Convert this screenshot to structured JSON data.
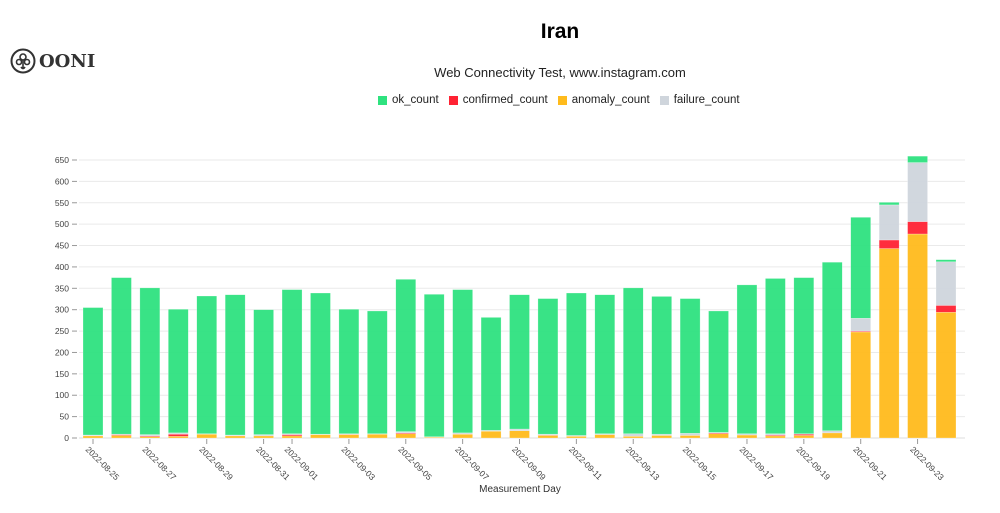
{
  "logo": {
    "text": "OONI",
    "icon": "ooni-octopus-logo"
  },
  "chart_data": {
    "type": "bar",
    "stacked": true,
    "title": "Iran",
    "subtitle": "Web Connectivity Test, www.instagram.com",
    "xlabel": "Measurement Day",
    "ylabel": "",
    "ylim": [
      0,
      660
    ],
    "yticks": [
      0,
      50,
      100,
      150,
      200,
      250,
      300,
      350,
      400,
      450,
      500,
      550,
      600,
      650
    ],
    "grid": true,
    "legend_position": "top-center",
    "categories": [
      "2022-08-25",
      "2022-08-26",
      "2022-08-27",
      "2022-08-28",
      "2022-08-29",
      "2022-08-30",
      "2022-08-31",
      "2022-09-01",
      "2022-09-02",
      "2022-09-03",
      "2022-09-04",
      "2022-09-05",
      "2022-09-06",
      "2022-09-07",
      "2022-09-08",
      "2022-09-09",
      "2022-09-10",
      "2022-09-11",
      "2022-09-12",
      "2022-09-13",
      "2022-09-14",
      "2022-09-15",
      "2022-09-16",
      "2022-09-17",
      "2022-09-18",
      "2022-09-19",
      "2022-09-20",
      "2022-09-21",
      "2022-09-22",
      "2022-09-23",
      "2022-09-24"
    ],
    "xtick_labels": [
      "2022-08-25",
      "2022-08-27",
      "2022-08-29",
      "2022-08-31",
      "2022-09-01",
      "2022-09-03",
      "2022-09-05",
      "2022-09-07",
      "2022-09-09",
      "2022-09-11",
      "2022-09-13",
      "2022-09-15",
      "2022-09-17",
      "2022-09-19",
      "2022-09-21",
      "2022-09-23"
    ],
    "series": [
      {
        "name": "anomaly_count",
        "color": "#ffbb1c",
        "values": [
          5,
          6,
          3,
          4,
          9,
          5,
          5,
          5,
          8,
          8,
          9,
          10,
          2,
          9,
          16,
          17,
          6,
          4,
          8,
          4,
          6,
          6,
          10,
          7,
          5,
          6,
          12,
          248,
          443,
          477,
          294
        ]
      },
      {
        "name": "confirmed_count",
        "color": "#ff2233",
        "values": [
          0,
          2,
          2,
          5,
          0,
          0,
          0,
          3,
          0,
          1,
          0,
          2,
          0,
          0,
          0,
          0,
          1,
          0,
          0,
          0,
          0,
          0,
          2,
          0,
          2,
          3,
          0,
          2,
          20,
          29,
          16
        ]
      },
      {
        "name": "failure_count",
        "color": "#cfd5dc",
        "values": [
          2,
          1,
          3,
          3,
          1,
          2,
          3,
          2,
          1,
          1,
          1,
          3,
          1,
          3,
          2,
          4,
          2,
          2,
          2,
          6,
          3,
          5,
          1,
          3,
          3,
          1,
          5,
          30,
          82,
          138,
          102
        ]
      },
      {
        "name": "ok_count",
        "color": "#2ee27f",
        "values": [
          298,
          366,
          343,
          289,
          322,
          328,
          292,
          337,
          330,
          291,
          287,
          356,
          333,
          335,
          264,
          314,
          317,
          333,
          325,
          341,
          322,
          315,
          284,
          348,
          363,
          365,
          394,
          236,
          6,
          15,
          5
        ]
      }
    ]
  }
}
